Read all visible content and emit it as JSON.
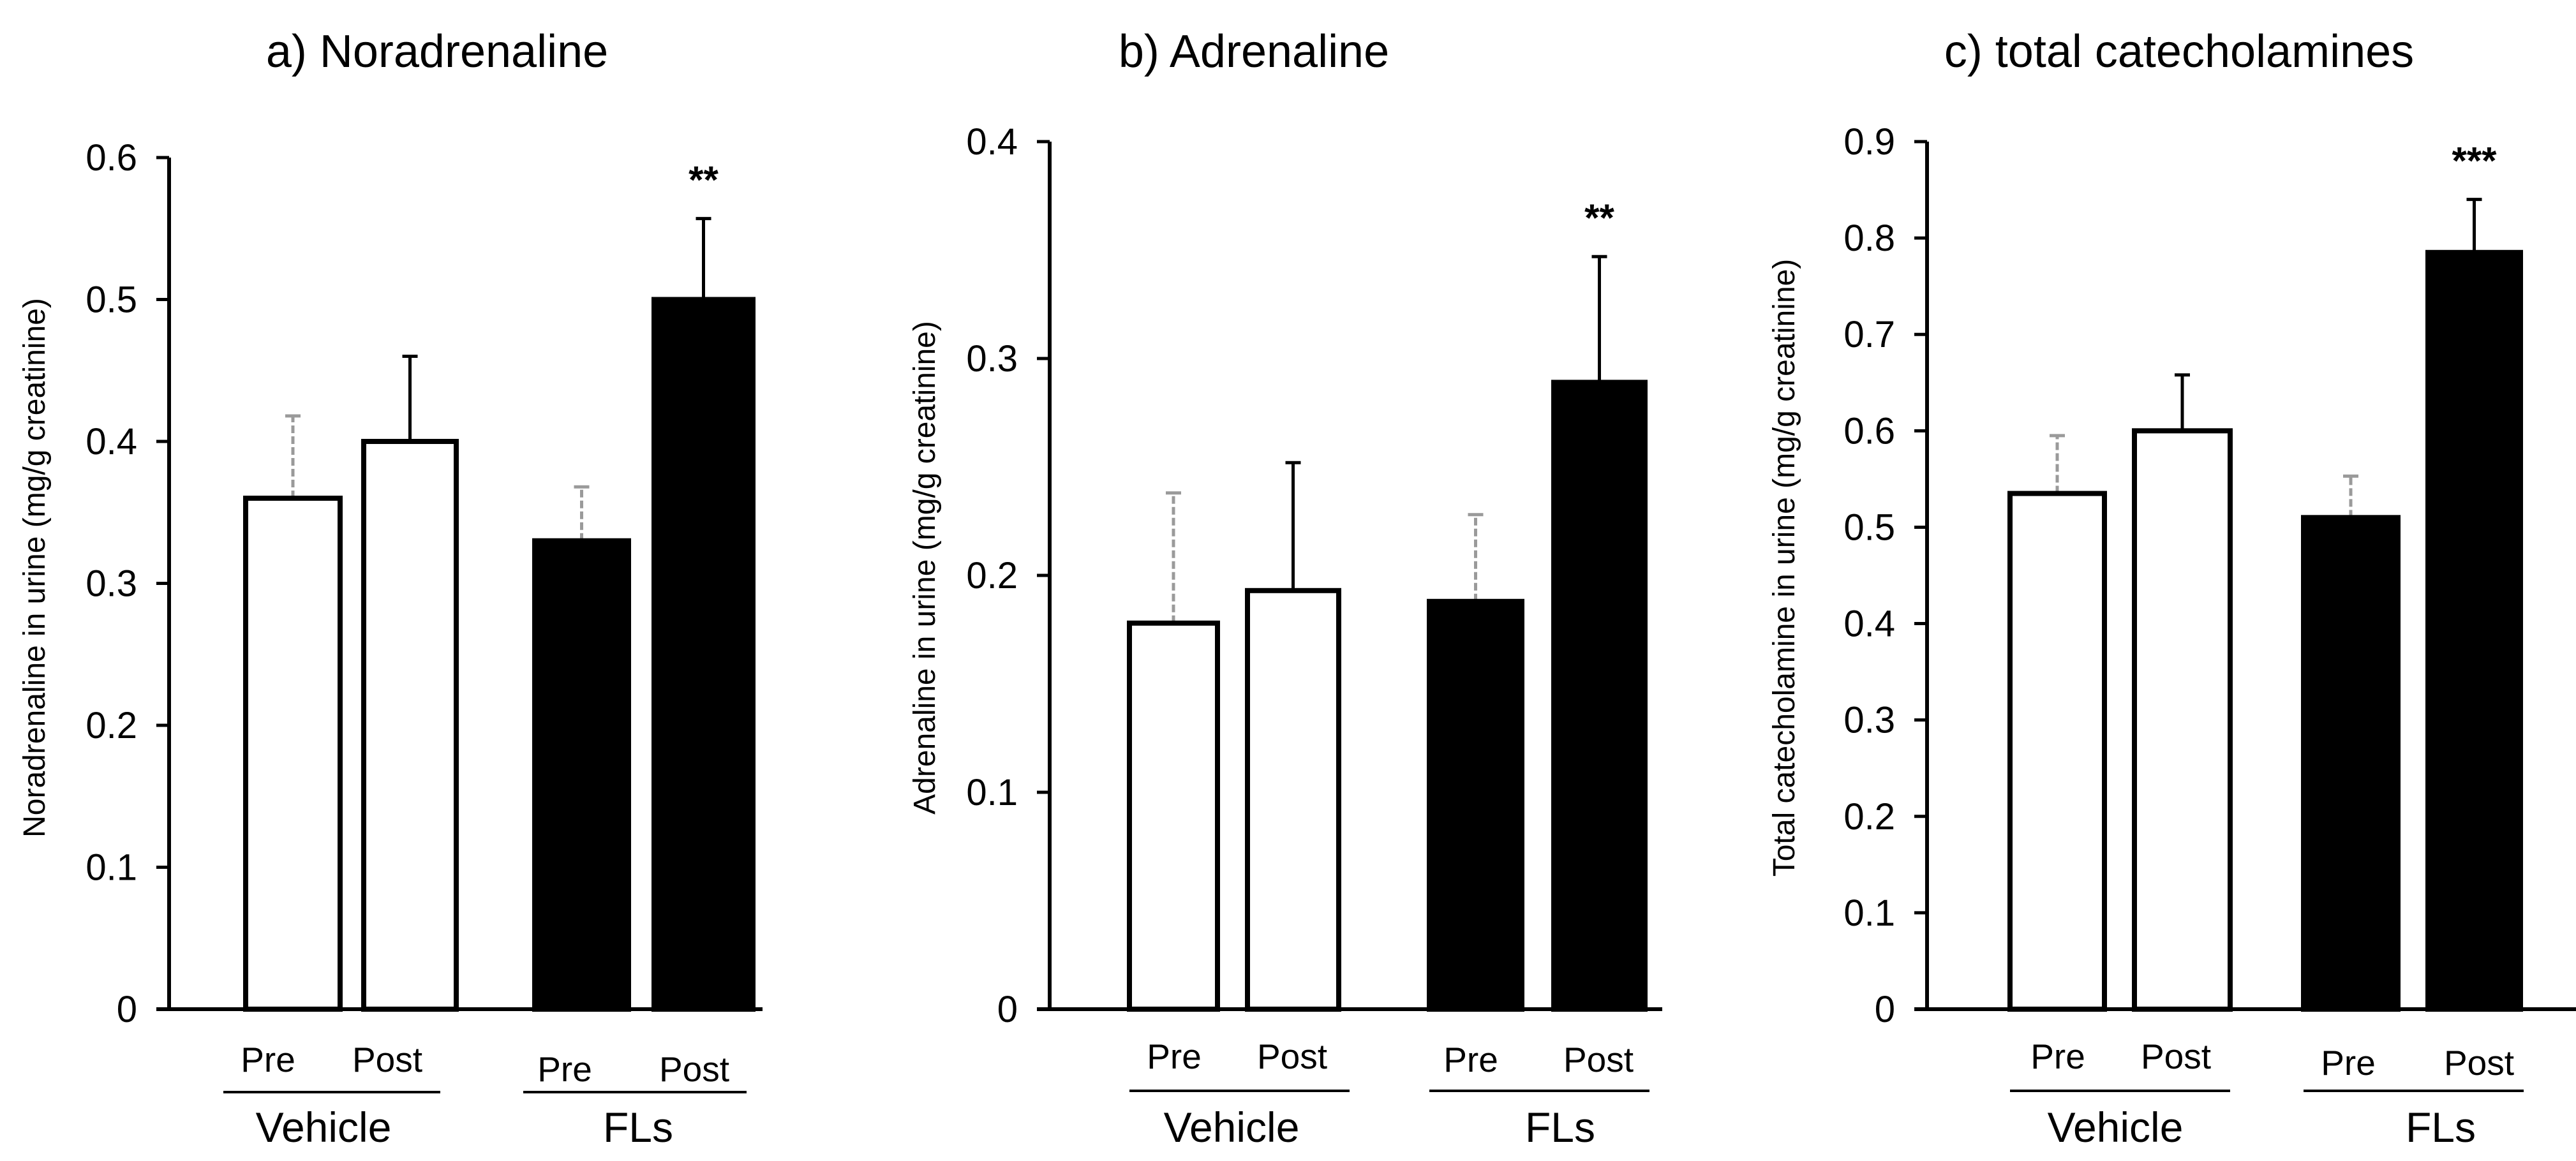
{
  "figure": {
    "colors": {
      "axis": "#000000",
      "pre_error_bar": "#9a9a9a",
      "post_error_bar": "#000000",
      "white_fill": "#ffffff",
      "black_fill": "#000000"
    },
    "x_groups": [
      {
        "label": "Vehicle",
        "conditions": [
          "Pre",
          "Post"
        ]
      },
      {
        "label": "FLs",
        "conditions": [
          "Pre",
          "Post"
        ]
      }
    ]
  },
  "chart_data": [
    {
      "type": "bar",
      "title": "a) Noradrenaline",
      "ylabel": "Noradrenaline  in urine (mg/g creatinine)",
      "xlabel": "",
      "ylim": [
        0,
        0.6
      ],
      "yticks": [
        "0",
        "0.1",
        "0.2",
        "0.3",
        "0.4",
        "0.5",
        "0.6"
      ],
      "categories": [
        "Vehicle Pre",
        "Vehicle Post",
        "FLs Pre",
        "FLs Post"
      ],
      "values": [
        0.36,
        0.4,
        0.33,
        0.5
      ],
      "errors": [
        0.058,
        0.06,
        0.038,
        0.057
      ],
      "fills": [
        "white",
        "white",
        "black",
        "black"
      ],
      "significance": [
        "",
        "",
        "",
        "**"
      ]
    },
    {
      "type": "bar",
      "title": "b) Adrenaline",
      "ylabel": "Adrenaline in urine (mg/g creatinine)",
      "xlabel": "",
      "ylim": [
        0,
        0.4
      ],
      "yticks": [
        "0",
        "0.1",
        "0.2",
        "0.3",
        "0.4"
      ],
      "categories": [
        "Vehicle Pre",
        "Vehicle Post",
        "FLs Pre",
        "FLs Post"
      ],
      "values": [
        0.178,
        0.193,
        0.188,
        0.289
      ],
      "errors": [
        0.06,
        0.059,
        0.04,
        0.058
      ],
      "fills": [
        "white",
        "white",
        "black",
        "black"
      ],
      "significance": [
        "",
        "",
        "",
        "**"
      ]
    },
    {
      "type": "bar",
      "title": "c) total catecholamines",
      "ylabel": "Total catecholamine in urine (mg/g creatinine)",
      "xlabel": "",
      "ylim": [
        0,
        0.9
      ],
      "yticks": [
        "0",
        "0.1",
        "0.2",
        "0.3",
        "0.4",
        "0.5",
        "0.6",
        "0.7",
        "0.8",
        "0.9"
      ],
      "categories": [
        "Vehicle Pre",
        "Vehicle Post",
        "FLs Pre",
        "FLs Post"
      ],
      "values": [
        0.535,
        0.6,
        0.51,
        0.785
      ],
      "errors": [
        0.06,
        0.058,
        0.043,
        0.055
      ],
      "fills": [
        "white",
        "white",
        "black",
        "black"
      ],
      "significance": [
        "",
        "",
        "",
        "***"
      ]
    }
  ]
}
